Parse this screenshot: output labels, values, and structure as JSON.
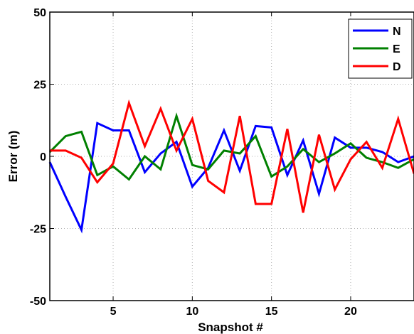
{
  "chart_data": {
    "type": "line",
    "xlabel": "Snapshot #",
    "ylabel": "Error (m)",
    "xlim": [
      1,
      24
    ],
    "ylim": [
      -50,
      50
    ],
    "xticks": [
      5,
      10,
      15,
      20
    ],
    "yticks": [
      50,
      25,
      0,
      -25,
      -50
    ],
    "grid": true,
    "legend_position": "top-right",
    "x": [
      1,
      2,
      3,
      4,
      5,
      6,
      7,
      8,
      9,
      10,
      11,
      12,
      13,
      14,
      15,
      16,
      17,
      18,
      19,
      20,
      21,
      22,
      23,
      24
    ],
    "series": [
      {
        "name": "N",
        "color": "#0000ff",
        "values": [
          -2,
          -14,
          -25.5,
          11.5,
          9,
          9,
          -5.5,
          1,
          5,
          -10.5,
          -4,
          9,
          -5,
          10.5,
          10,
          -6.5,
          5.5,
          -13,
          6.5,
          3,
          3,
          1.5,
          -2,
          0
        ]
      },
      {
        "name": "E",
        "color": "#008000",
        "values": [
          1.5,
          7,
          8.5,
          -6.5,
          -3.5,
          -8,
          0,
          -4.5,
          14,
          -3,
          -4.5,
          2,
          1,
          7,
          -7,
          -3.5,
          2.5,
          -2,
          1,
          4.5,
          -0.5,
          -2,
          -4,
          -1
        ]
      },
      {
        "name": "D",
        "color": "#ff0000",
        "values": [
          2,
          2,
          -0.5,
          -9,
          -2.5,
          18.5,
          3.5,
          16.5,
          2,
          13,
          -8.5,
          -12.5,
          14,
          -16.5,
          -16.5,
          9.5,
          -19.5,
          7.5,
          -11.5,
          -1,
          5,
          -4,
          13,
          -6
        ]
      }
    ]
  }
}
